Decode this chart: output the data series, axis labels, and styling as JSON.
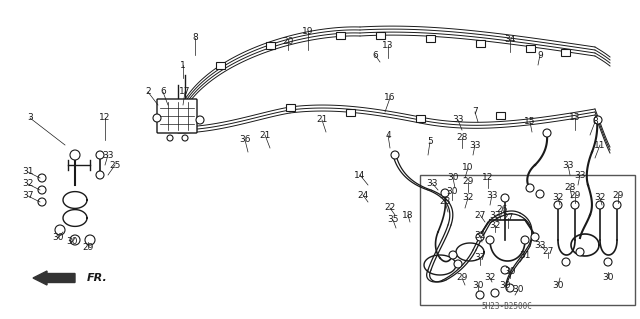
{
  "bg": "#f5f5f0",
  "lc": "#1a1a1a",
  "fig_w": 6.4,
  "fig_h": 3.19,
  "dpi": 100,
  "code_text": "5H23-B2500C",
  "fr_text": "FR."
}
